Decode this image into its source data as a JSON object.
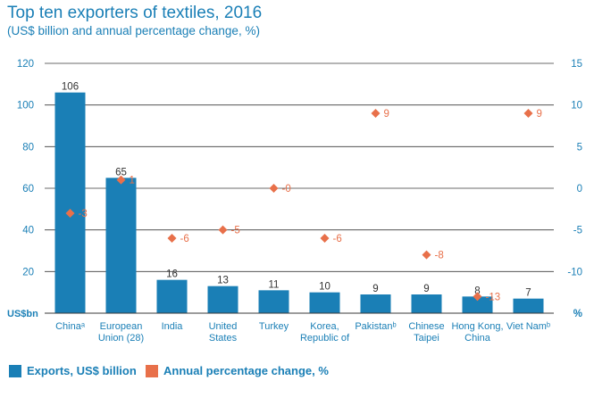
{
  "title": "Top ten exporters of textiles, 2016",
  "subtitle": "(US$ billion and annual percentage change, %)",
  "colors": {
    "accent": "#1a7fb6",
    "bar": "#1a7fb6",
    "marker": "#e8704a"
  },
  "chart_data": {
    "type": "bar",
    "categories": [
      [
        "Chinaᵃ"
      ],
      [
        "European",
        "Union (28)"
      ],
      [
        "India"
      ],
      [
        "United",
        "States"
      ],
      [
        "Turkey"
      ],
      [
        "Korea,",
        "Republic of"
      ],
      [
        "Pakistanᵇ"
      ],
      [
        "Chinese",
        "Taipei"
      ],
      [
        "Hong Kong,",
        "China"
      ],
      [
        "Viet Namᵇ"
      ]
    ],
    "series": [
      {
        "name": "Exports, US$ billion",
        "type": "bar",
        "axis": "left",
        "values": [
          106,
          65,
          16,
          13,
          11,
          10,
          9,
          9,
          8,
          7
        ],
        "labels": [
          "106",
          "65",
          "16",
          "13",
          "11",
          "10",
          "9",
          "9",
          "8",
          "7"
        ]
      },
      {
        "name": "Annual percentage change, %",
        "type": "scatter",
        "axis": "right",
        "values": [
          -3,
          1,
          -6,
          -5,
          0,
          -6,
          9,
          -8,
          -13,
          9
        ],
        "labels": [
          "-3",
          "1",
          "-6",
          "-5",
          "-0",
          "-6",
          "9",
          "-8",
          "-13",
          "9"
        ]
      }
    ],
    "ylim": [
      0,
      120
    ],
    "y_ticks": [
      "120",
      "100",
      "80",
      "60",
      "40",
      "20"
    ],
    "y_unit": "US$bn",
    "y2lim": [
      -15,
      15
    ],
    "y2_ticks": [
      "15",
      "10",
      "5",
      "0",
      "-5",
      "-10"
    ],
    "y2_unit": "%",
    "grid": true,
    "legend_position": "bottom-left"
  }
}
